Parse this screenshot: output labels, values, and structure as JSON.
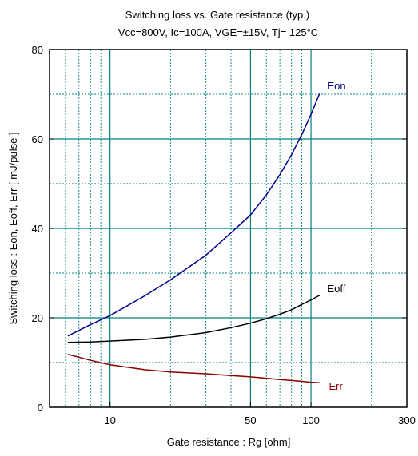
{
  "chart_data": {
    "type": "line",
    "title": "Switching loss  vs.  Gate resistance (typ.)",
    "subtitle": "Vcc=800V, Ic=100A, VGE=±15V, Tj= 125°C",
    "xlabel": "Gate resistance  :  Rg  [ohm]",
    "ylabel": "Switching loss  :  Eon, Eoff, Err  [ mJ/pulse ]",
    "x_scale": "log",
    "xlim": [
      5,
      300
    ],
    "ylim": [
      0,
      80
    ],
    "x_ticks": [
      {
        "value": 10,
        "label": "10"
      },
      {
        "value": 50,
        "label": "50"
      },
      {
        "value": 100,
        "label": "100"
      },
      {
        "value": 300,
        "label": "300"
      }
    ],
    "y_ticks": [
      {
        "value": 0,
        "label": "0"
      },
      {
        "value": 20,
        "label": "20"
      },
      {
        "value": 40,
        "label": "40"
      },
      {
        "value": 60,
        "label": "60"
      },
      {
        "value": 80,
        "label": "80"
      }
    ],
    "grid": true,
    "grid_color": "#008080",
    "series": [
      {
        "name": "Eon",
        "color": "#00008b",
        "x": [
          6.2,
          8,
          10,
          15,
          20,
          30,
          40,
          50,
          60,
          70,
          80,
          90,
          100,
          110
        ],
        "y": [
          16,
          18.5,
          20.5,
          25,
          28.5,
          34,
          39,
          43,
          47.5,
          52,
          56.5,
          61,
          65.5,
          70
        ]
      },
      {
        "name": "Eoff",
        "color": "#000000",
        "x": [
          6.2,
          8,
          10,
          15,
          20,
          30,
          40,
          50,
          60,
          70,
          80,
          90,
          100,
          110
        ],
        "y": [
          14.5,
          14.6,
          14.8,
          15.2,
          15.7,
          16.7,
          17.8,
          18.8,
          19.8,
          20.8,
          21.8,
          23,
          24,
          25
        ]
      },
      {
        "name": "Err",
        "color": "#8b0000",
        "x": [
          6.2,
          8,
          10,
          15,
          20,
          30,
          40,
          50,
          60,
          70,
          80,
          90,
          100,
          110
        ],
        "y": [
          11.8,
          10.5,
          9.5,
          8.4,
          7.9,
          7.5,
          7.1,
          6.8,
          6.5,
          6.2,
          6,
          5.8,
          5.6,
          5.5
        ]
      }
    ]
  }
}
